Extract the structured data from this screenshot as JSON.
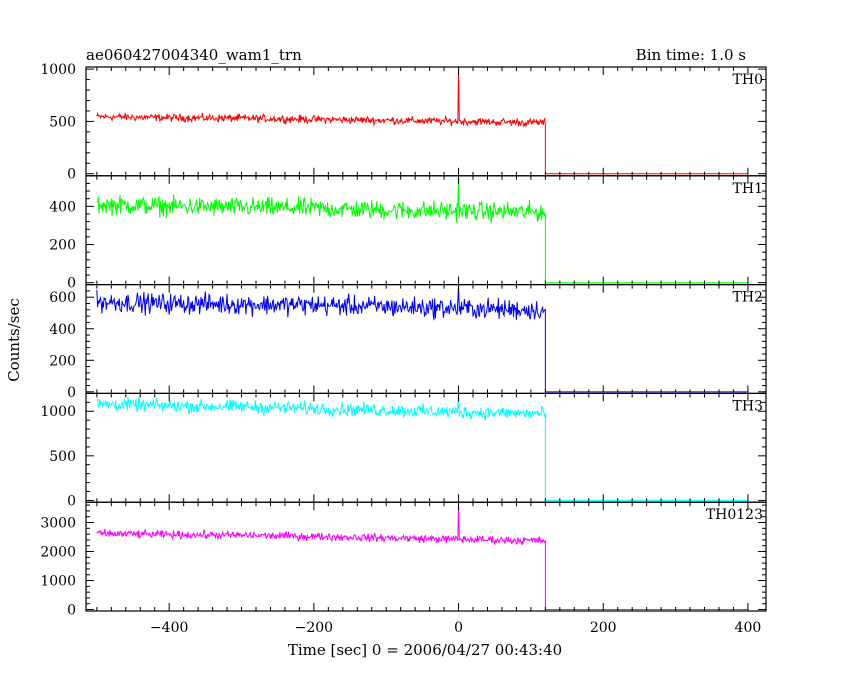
{
  "chart_data": {
    "type": "line",
    "title": "ae060427004340_wam1_trn",
    "bin_time_label": "Bin time: 1.0 s",
    "xlabel": "Time [sec] 0 = 2006/04/27 00:43:40",
    "ylabel": "Counts/sec",
    "xlim": [
      -515,
      425
    ],
    "x_ticks": [
      -400,
      -200,
      0,
      200,
      400
    ],
    "grid": false,
    "panels": [
      {
        "name": "TH0",
        "color": "#ff0000",
        "ylim": [
          -20,
          1020
        ],
        "y_ticks": [
          0,
          500,
          1000
        ],
        "profile": [
          [
            -500,
            545
          ],
          [
            -400,
            535
          ],
          [
            -300,
            530
          ],
          [
            -200,
            520
          ],
          [
            -100,
            510
          ],
          [
            0,
            500
          ],
          [
            100,
            490
          ],
          [
            120,
            490
          ]
        ],
        "noise": 40,
        "spikes": [
          [
            0,
            1020
          ]
        ],
        "drop_at": 120,
        "after_value": 0
      },
      {
        "name": "TH1",
        "color": "#00ff00",
        "ylim": [
          -10,
          560
        ],
        "y_ticks": [
          0,
          200,
          400
        ],
        "profile": [
          [
            -500,
            410
          ],
          [
            -400,
            400
          ],
          [
            -300,
            395
          ],
          [
            -200,
            390
          ],
          [
            -100,
            380
          ],
          [
            0,
            375
          ],
          [
            100,
            370
          ],
          [
            120,
            370
          ]
        ],
        "noise": 55,
        "spikes": [
          [
            0,
            560
          ]
        ],
        "drop_at": 120,
        "after_value": 0
      },
      {
        "name": "TH2",
        "color": "#0000ff",
        "ylim": [
          -10,
          680
        ],
        "y_ticks": [
          0,
          200,
          400,
          600
        ],
        "profile": [
          [
            -500,
            570
          ],
          [
            -400,
            560
          ],
          [
            -300,
            555
          ],
          [
            -200,
            550
          ],
          [
            -100,
            540
          ],
          [
            0,
            530
          ],
          [
            100,
            520
          ],
          [
            120,
            520
          ]
        ],
        "noise": 70,
        "spikes": [
          [
            0,
            680
          ]
        ],
        "drop_at": 120,
        "after_value": 0
      },
      {
        "name": "TH3",
        "color": "#00ffff",
        "ylim": [
          -20,
          1200
        ],
        "y_ticks": [
          0,
          500,
          1000
        ],
        "profile": [
          [
            -500,
            1080
          ],
          [
            -400,
            1060
          ],
          [
            -300,
            1050
          ],
          [
            -200,
            1030
          ],
          [
            -100,
            1010
          ],
          [
            0,
            990
          ],
          [
            100,
            975
          ],
          [
            120,
            975
          ]
        ],
        "noise": 80,
        "spikes": [
          [
            0,
            1200
          ]
        ],
        "drop_at": 120,
        "after_value": 0
      },
      {
        "name": "TH0123",
        "color": "#ff00ff",
        "ylim": [
          -50,
          3700
        ],
        "y_ticks": [
          0,
          1000,
          2000,
          3000
        ],
        "profile": [
          [
            -500,
            2620
          ],
          [
            -400,
            2580
          ],
          [
            -300,
            2560
          ],
          [
            -200,
            2520
          ],
          [
            -100,
            2470
          ],
          [
            0,
            2420
          ],
          [
            100,
            2380
          ],
          [
            120,
            2370
          ]
        ],
        "noise": 150,
        "spikes": [
          [
            0,
            3700
          ]
        ],
        "drop_at": 120,
        "after_value": 0
      }
    ]
  }
}
